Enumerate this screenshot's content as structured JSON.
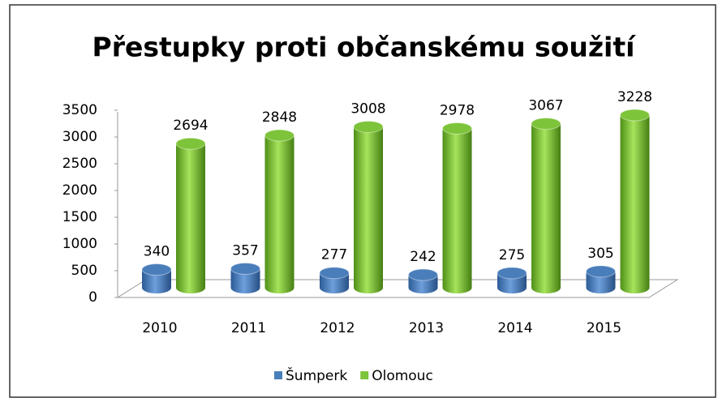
{
  "chart_data": {
    "type": "bar3d",
    "title": "Přestupky proti občanskému soužití",
    "categories": [
      "2010",
      "2011",
      "2012",
      "2013",
      "2014",
      "2015"
    ],
    "series": [
      {
        "name": "Šumperk",
        "color": "#4a7ebb",
        "values": [
          340,
          357,
          277,
          242,
          275,
          305
        ]
      },
      {
        "name": "Olomouc",
        "color": "#7dc43a",
        "values": [
          2694,
          2848,
          3008,
          2978,
          3067,
          3228
        ]
      }
    ],
    "ylim": [
      0,
      3500
    ],
    "yticks": [
      0,
      500,
      1000,
      1500,
      2000,
      2500,
      3000,
      3500
    ],
    "legend": "bottom"
  }
}
